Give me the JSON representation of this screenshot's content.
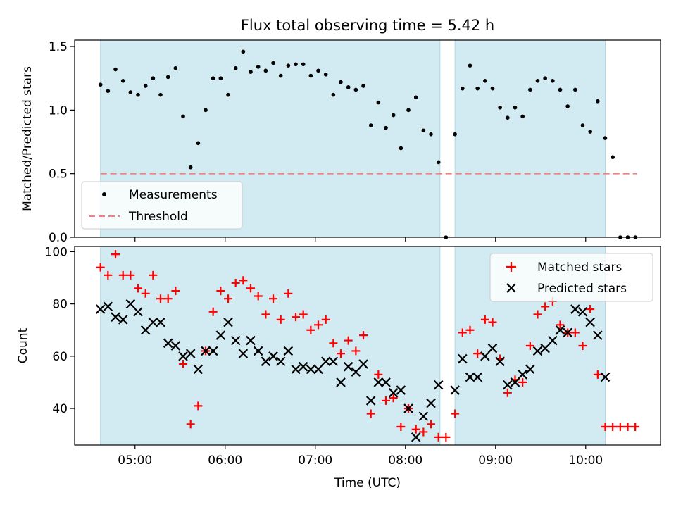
{
  "title": "Flux total observing time = 5.42 h",
  "chart_data": [
    {
      "type": "scatter",
      "panel": "top",
      "ylabel": "Matched/Predicted stars",
      "xlim_hours": [
        4.33,
        10.83
      ],
      "ylim": [
        0,
        1.55
      ],
      "yticks": [
        0.0,
        0.5,
        1.0,
        1.5
      ],
      "ytick_labels": [
        "0.0",
        "0.5",
        "1.0",
        "1.5"
      ],
      "legend_position": "lower-left",
      "observing_windows": [
        {
          "start": "04:37",
          "end": "08:23"
        },
        {
          "start": "08:33",
          "end": "10:13"
        }
      ],
      "window_color": "#add8e6",
      "threshold": {
        "name": "Threshold",
        "value": 0.5,
        "x_start": "04:37",
        "x_end": "10:34",
        "color": "#f08080",
        "style": "dashed"
      },
      "series": [
        {
          "name": "Measurements",
          "color": "#000000",
          "marker": "dot",
          "x": [
            "04:37",
            "04:42",
            "04:47",
            "04:52",
            "04:57",
            "05:02",
            "05:07",
            "05:12",
            "05:17",
            "05:22",
            "05:27",
            "05:32",
            "05:37",
            "05:42",
            "05:47",
            "05:52",
            "05:57",
            "06:02",
            "06:07",
            "06:12",
            "06:17",
            "06:22",
            "06:27",
            "06:32",
            "06:37",
            "06:42",
            "06:47",
            "06:52",
            "06:57",
            "07:02",
            "07:07",
            "07:12",
            "07:17",
            "07:22",
            "07:27",
            "07:32",
            "07:37",
            "07:42",
            "07:47",
            "07:52",
            "07:57",
            "08:02",
            "08:07",
            "08:12",
            "08:17",
            "08:22",
            "08:27",
            "08:33",
            "08:38",
            "08:43",
            "08:48",
            "08:53",
            "08:58",
            "09:03",
            "09:08",
            "09:13",
            "09:18",
            "09:23",
            "09:28",
            "09:33",
            "09:38",
            "09:43",
            "09:48",
            "09:53",
            "09:58",
            "10:03",
            "10:08",
            "10:13",
            "10:18",
            "10:23",
            "10:28",
            "10:33"
          ],
          "y": [
            1.2,
            1.15,
            1.32,
            1.23,
            1.14,
            1.12,
            1.19,
            1.25,
            1.12,
            1.26,
            1.33,
            0.95,
            0.55,
            0.74,
            1.0,
            1.25,
            1.25,
            1.12,
            1.33,
            1.46,
            1.3,
            1.34,
            1.31,
            1.37,
            1.27,
            1.35,
            1.36,
            1.36,
            1.27,
            1.31,
            1.28,
            1.12,
            1.22,
            1.18,
            1.16,
            1.19,
            0.88,
            1.06,
            0.86,
            0.96,
            0.7,
            1.0,
            1.1,
            0.84,
            0.81,
            0.59,
            0.0,
            0.81,
            1.17,
            1.35,
            1.17,
            1.23,
            1.17,
            1.02,
            0.94,
            1.02,
            0.95,
            1.16,
            1.23,
            1.25,
            1.23,
            1.16,
            1.03,
            1.16,
            0.88,
            0.83,
            1.07,
            0.78,
            0.63,
            0.0,
            0.0,
            0.0
          ]
        }
      ]
    },
    {
      "type": "scatter",
      "panel": "bottom",
      "xlabel": "Time (UTC)",
      "ylabel": "Count",
      "xlim_hours": [
        4.33,
        10.83
      ],
      "ylim": [
        26,
        102
      ],
      "yticks": [
        40,
        60,
        80,
        100
      ],
      "ytick_labels": [
        "40",
        "60",
        "80",
        "100"
      ],
      "xticks": [
        "05:00",
        "06:00",
        "07:00",
        "08:00",
        "09:00",
        "10:00"
      ],
      "legend_position": "top-right",
      "observing_windows": [
        {
          "start": "04:37",
          "end": "08:23"
        },
        {
          "start": "08:33",
          "end": "10:13"
        }
      ],
      "series": [
        {
          "name": "Matched stars",
          "color": "#ff0000",
          "marker": "plus",
          "x": [
            "04:37",
            "04:42",
            "04:47",
            "04:52",
            "04:57",
            "05:02",
            "05:07",
            "05:12",
            "05:17",
            "05:22",
            "05:27",
            "05:32",
            "05:37",
            "05:42",
            "05:47",
            "05:52",
            "05:57",
            "06:02",
            "06:07",
            "06:12",
            "06:17",
            "06:22",
            "06:27",
            "06:32",
            "06:37",
            "06:42",
            "06:47",
            "06:52",
            "06:57",
            "07:02",
            "07:07",
            "07:12",
            "07:17",
            "07:22",
            "07:27",
            "07:32",
            "07:37",
            "07:42",
            "07:47",
            "07:52",
            "07:57",
            "08:02",
            "08:07",
            "08:12",
            "08:17",
            "08:22",
            "08:27",
            "08:33",
            "08:38",
            "08:43",
            "08:48",
            "08:53",
            "08:58",
            "09:03",
            "09:08",
            "09:13",
            "09:18",
            "09:23",
            "09:28",
            "09:33",
            "09:38",
            "09:43",
            "09:48",
            "09:53",
            "09:58",
            "10:03",
            "10:08",
            "10:13",
            "10:18",
            "10:23",
            "10:28",
            "10:33"
          ],
          "y": [
            94,
            91,
            99,
            91,
            91,
            86,
            84,
            91,
            82,
            82,
            85,
            57,
            34,
            41,
            62,
            77,
            85,
            82,
            88,
            89,
            86,
            83,
            76,
            82,
            74,
            84,
            75,
            76,
            70,
            72,
            74,
            65,
            61,
            66,
            62,
            68,
            38,
            53,
            43,
            44,
            33,
            40,
            32,
            31,
            34,
            29,
            29,
            38,
            69,
            70,
            61,
            74,
            73,
            59,
            46,
            51,
            50,
            64,
            76,
            79,
            81,
            72,
            69,
            69,
            64,
            78,
            53,
            33,
            33,
            33,
            33,
            33
          ]
        },
        {
          "name": "Predicted stars",
          "color": "#000000",
          "marker": "x",
          "x": [
            "04:37",
            "04:42",
            "04:47",
            "04:52",
            "04:57",
            "05:02",
            "05:07",
            "05:12",
            "05:17",
            "05:22",
            "05:27",
            "05:32",
            "05:37",
            "05:42",
            "05:47",
            "05:52",
            "05:57",
            "06:02",
            "06:07",
            "06:12",
            "06:17",
            "06:22",
            "06:27",
            "06:32",
            "06:37",
            "06:42",
            "06:47",
            "06:52",
            "06:57",
            "07:02",
            "07:07",
            "07:12",
            "07:17",
            "07:22",
            "07:27",
            "07:32",
            "07:37",
            "07:42",
            "07:47",
            "07:52",
            "07:57",
            "08:02",
            "08:07",
            "08:12",
            "08:17",
            "08:22",
            "08:33",
            "08:38",
            "08:43",
            "08:48",
            "08:53",
            "08:58",
            "09:03",
            "09:08",
            "09:13",
            "09:18",
            "09:23",
            "09:28",
            "09:33",
            "09:38",
            "09:43",
            "09:48",
            "09:53",
            "09:58",
            "10:03",
            "10:08",
            "10:13"
          ],
          "y": [
            78,
            79,
            75,
            74,
            80,
            77,
            70,
            73,
            73,
            65,
            64,
            60,
            61,
            55,
            62,
            62,
            68,
            73,
            66,
            61,
            66,
            62,
            58,
            60,
            58,
            62,
            55,
            56,
            55,
            55,
            58,
            58,
            50,
            56,
            54,
            57,
            43,
            50,
            50,
            46,
            47,
            40,
            29,
            37,
            42,
            49,
            47,
            59,
            52,
            52,
            60,
            63,
            58,
            49,
            50,
            53,
            55,
            62,
            63,
            66,
            70,
            69,
            78,
            77,
            73,
            68,
            52
          ]
        }
      ]
    }
  ]
}
